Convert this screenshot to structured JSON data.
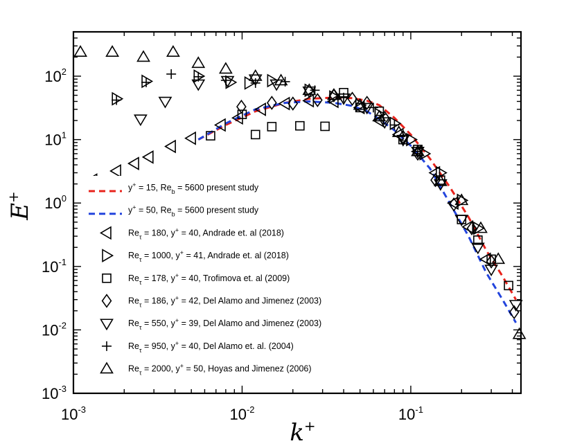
{
  "chart_data": {
    "type": "scatter",
    "title": "",
    "xlabel": "k",
    "xlabel_sup": "+",
    "ylabel": "E",
    "ylabel_sup": "+",
    "xscale": "log",
    "yscale": "log",
    "xlim": [
      0.001,
      0.45
    ],
    "ylim": [
      0.001,
      500
    ],
    "x_ticks": [
      {
        "value": 0.001,
        "base": "10",
        "exp": "-3"
      },
      {
        "value": 0.01,
        "base": "10",
        "exp": "-2"
      },
      {
        "value": 0.1,
        "base": "10",
        "exp": "-1"
      }
    ],
    "y_ticks": [
      {
        "value": 0.001,
        "base": "10",
        "exp": "-3"
      },
      {
        "value": 0.01,
        "base": "10",
        "exp": "-2"
      },
      {
        "value": 0.1,
        "base": "10",
        "exp": "-1"
      },
      {
        "value": 1,
        "base": "10",
        "exp": "0"
      },
      {
        "value": 10,
        "base": "10",
        "exp": "1"
      },
      {
        "value": 100,
        "base": "10",
        "exp": "2"
      }
    ],
    "legend_position": "left-center",
    "series": [
      {
        "name": "y+ = 15, Re_b = 5600 present study",
        "label_parts": [
          [
            "",
            "y"
          ],
          [
            "sup",
            "+"
          ],
          [
            "",
            " = 15, Re"
          ],
          [
            "sub",
            "b"
          ],
          [
            "",
            " = 5600 present study"
          ]
        ],
        "kind": "line",
        "color": "#e8231c",
        "dash": "9,6",
        "x": [
          0.0055,
          0.008,
          0.012,
          0.018,
          0.025,
          0.035,
          0.045,
          0.055,
          0.065,
          0.08,
          0.1,
          0.13,
          0.17,
          0.22,
          0.28,
          0.35,
          0.42
        ],
        "y": [
          10,
          17,
          28,
          38,
          44,
          46,
          45,
          41,
          35,
          22,
          12,
          5,
          1.8,
          0.6,
          0.18,
          0.07,
          0.03
        ]
      },
      {
        "name": "y+ = 50, Re_b = 5600 present study",
        "label_parts": [
          [
            "",
            "y"
          ],
          [
            "sup",
            "+"
          ],
          [
            "",
            " = 50, Re"
          ],
          [
            "sub",
            "b"
          ],
          [
            "",
            " = 5600 present study"
          ]
        ],
        "kind": "line",
        "color": "#2244dd",
        "dash": "9,6",
        "x": [
          0.0055,
          0.008,
          0.012,
          0.018,
          0.025,
          0.035,
          0.045,
          0.055,
          0.065,
          0.08,
          0.1,
          0.13,
          0.17,
          0.22,
          0.28,
          0.35,
          0.42
        ],
        "y": [
          10,
          18,
          30,
          38,
          40,
          38,
          34,
          28,
          21,
          14,
          8,
          3.5,
          1,
          0.3,
          0.08,
          0.03,
          0.013
        ]
      },
      {
        "name": "Re_tau = 180, y+ = 40, Andrade et. al (2018)",
        "label_parts": [
          [
            "",
            "Re"
          ],
          [
            "sub",
            "τ"
          ],
          [
            "",
            " = 180, y"
          ],
          [
            "sup",
            "+"
          ],
          [
            "",
            " = 40, Andrade et. al (2018)"
          ]
        ],
        "kind": "marker",
        "marker": "triangle-left",
        "x": [
          0.0013,
          0.0018,
          0.0023,
          0.0028,
          0.0038,
          0.005,
          0.0075,
          0.0095,
          0.013,
          0.018,
          0.025,
          0.035,
          0.05,
          0.065,
          0.085,
          0.11,
          0.14,
          0.18,
          0.22,
          0.28
        ],
        "y": [
          2.3,
          3.2,
          4.2,
          5.3,
          7.8,
          10.5,
          17,
          22,
          30,
          37,
          41,
          40,
          32,
          20,
          12,
          6.5,
          3,
          1,
          0.42,
          0.13
        ]
      },
      {
        "name": "Re_tau = 1000, y+ = 41, Andrade et. al (2018)",
        "label_parts": [
          [
            "",
            "Re"
          ],
          [
            "sub",
            "τ"
          ],
          [
            "",
            " = 1000, y"
          ],
          [
            "sup",
            "+"
          ],
          [
            "",
            " = 41, Andrade et. al (2018)"
          ]
        ],
        "kind": "marker",
        "marker": "triangle-right",
        "x": [
          0.0018,
          0.0027,
          0.0055,
          0.0085,
          0.011,
          0.015,
          0.025,
          0.035,
          0.05,
          0.065,
          0.08,
          0.1,
          0.12,
          0.15,
          0.2,
          0.25
        ],
        "y": [
          44,
          83,
          100,
          80,
          78,
          85,
          60,
          47,
          35,
          25,
          18,
          10,
          6,
          3,
          1.1,
          0.4
        ]
      },
      {
        "name": "Re_tau = 178, y+ = 40, Trofimova et. al (2009)",
        "label_parts": [
          [
            "",
            "Re"
          ],
          [
            "sub",
            "τ"
          ],
          [
            "",
            " = 178, y"
          ],
          [
            "sup",
            "+"
          ],
          [
            "",
            " = 40, Trofimova et. al (2009)"
          ]
        ],
        "kind": "marker",
        "marker": "square",
        "x": [
          0.0065,
          0.01,
          0.012,
          0.015,
          0.022,
          0.031,
          0.04,
          0.05,
          0.065,
          0.09,
          0.11,
          0.15,
          0.2,
          0.25,
          0.3,
          0.38
        ],
        "y": [
          11.5,
          25,
          12,
          16,
          16.5,
          16.2,
          55,
          32,
          28,
          10,
          7,
          2.3,
          0.55,
          0.26,
          0.13,
          0.05
        ]
      },
      {
        "name": "Re_tau = 186, y+ = 42, Del Alamo and Jimenez (2003)",
        "label_parts": [
          [
            "",
            "Re"
          ],
          [
            "sub",
            "τ"
          ],
          [
            "",
            " = 186, y"
          ],
          [
            "sup",
            "+"
          ],
          [
            "",
            " = 42, Del Alamo and Jimenez (2003)"
          ]
        ],
        "kind": "marker",
        "marker": "diamond",
        "x": [
          0.0099,
          0.015,
          0.02,
          0.028,
          0.035,
          0.045,
          0.055,
          0.07,
          0.09,
          0.11,
          0.14,
          0.18,
          0.23,
          0.3,
          0.41
        ],
        "y": [
          33,
          38,
          37,
          42,
          50,
          44,
          38,
          22,
          11,
          6,
          2.3,
          0.95,
          0.4,
          0.12,
          0.019
        ]
      },
      {
        "name": "Re_tau = 550, y+ = 39, Del Alamo and Jimenez (2003)",
        "label_parts": [
          [
            "",
            "Re"
          ],
          [
            "sub",
            "τ"
          ],
          [
            "",
            " = 550, y"
          ],
          [
            "sup",
            "+"
          ],
          [
            "",
            " = 39, Del Alamo and Jimenez (2003)"
          ]
        ],
        "kind": "marker",
        "marker": "triangle-down",
        "x": [
          0.0025,
          0.0035,
          0.0055,
          0.0082,
          0.012,
          0.016,
          0.025,
          0.04,
          0.055,
          0.07,
          0.09,
          0.11,
          0.15,
          0.2,
          0.25,
          0.3,
          0.42
        ],
        "y": [
          21,
          40,
          75,
          85,
          90,
          75,
          58,
          45,
          32,
          19,
          10,
          6.5,
          2,
          0.55,
          0.2,
          0.09,
          0.025
        ]
      },
      {
        "name": "Re_tau = 950, y+ = 40, Del Alamo et. al. (2004)",
        "label_parts": [
          [
            "",
            "Re"
          ],
          [
            "sub",
            "τ"
          ],
          [
            "",
            " = 950, y"
          ],
          [
            "sup",
            "+"
          ],
          [
            "",
            " = 40, Del Alamo et. al. (2004)"
          ]
        ],
        "kind": "marker",
        "marker": "plus",
        "x": [
          0.0018,
          0.0027,
          0.0038,
          0.0055,
          0.008,
          0.012,
          0.018,
          0.027,
          0.04,
          0.06,
          0.08,
          0.11
        ],
        "y": [
          42,
          80,
          108,
          98,
          86,
          78,
          82,
          60,
          46,
          32,
          17,
          6.5
        ]
      },
      {
        "name": "Re_tau = 2000, y+ = 50, Hoyas and Jimenez (2006)",
        "label_parts": [
          [
            "",
            "Re"
          ],
          [
            "sub",
            "τ"
          ],
          [
            "",
            " = 2000, y"
          ],
          [
            "sup",
            "+"
          ],
          [
            "",
            " = 50, Hoyas and Jimenez (2006)"
          ]
        ],
        "kind": "marker",
        "marker": "triangle-up",
        "x": [
          0.0011,
          0.0017,
          0.0026,
          0.0039,
          0.0055,
          0.008,
          0.012,
          0.017,
          0.025,
          0.035,
          0.05,
          0.065,
          0.085,
          0.11,
          0.15,
          0.2,
          0.26,
          0.33,
          0.44
        ],
        "y": [
          240,
          240,
          200,
          240,
          160,
          130,
          100,
          85,
          60,
          50,
          35,
          23,
          13,
          6.5,
          2.2,
          1.1,
          0.4,
          0.13,
          0.0085
        ]
      }
    ]
  }
}
